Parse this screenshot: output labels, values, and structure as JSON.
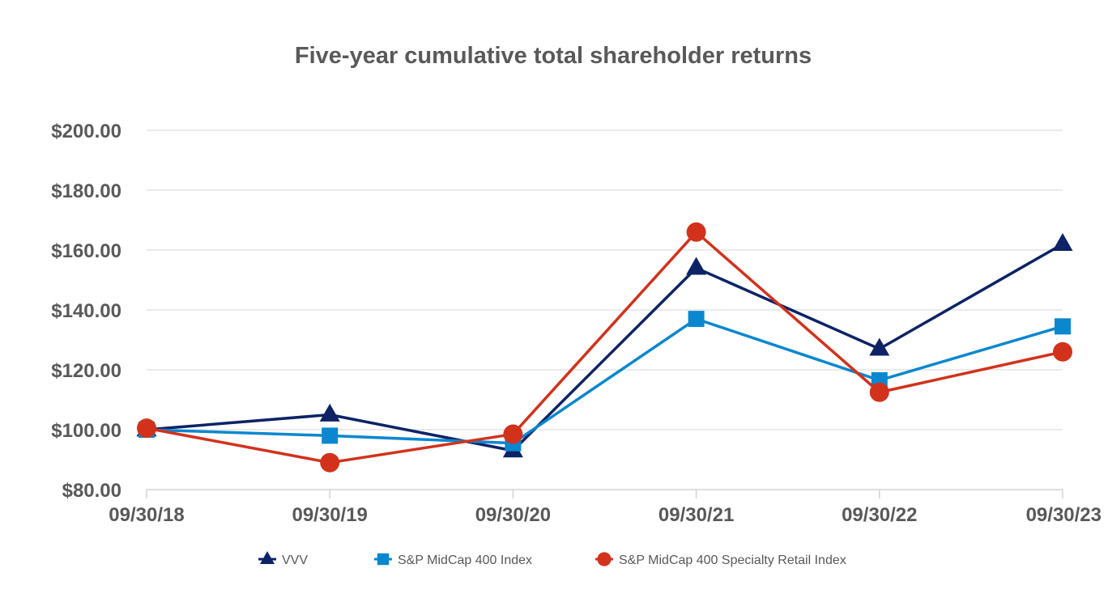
{
  "chart_data": {
    "type": "line",
    "title": "Five-year cumulative total shareholder returns",
    "xlabel": "",
    "ylabel": "",
    "categories": [
      "09/30/18",
      "09/30/19",
      "09/30/20",
      "09/30/21",
      "09/30/22",
      "09/30/23"
    ],
    "ylim": [
      80,
      200
    ],
    "yticks": [
      80,
      100,
      120,
      140,
      160,
      180,
      200
    ],
    "ytick_labels": [
      "$80.00",
      "$100.00",
      "$120.00",
      "$140.00",
      "$160.00",
      "$180.00",
      "$200.00"
    ],
    "grid": true,
    "legend_position": "bottom",
    "series": [
      {
        "name": "VVV",
        "values": [
          100,
          105,
          93,
          154,
          127,
          162
        ],
        "color": "#0d2366",
        "marker": "triangle"
      },
      {
        "name": "S&P MidCap 400 Index",
        "values": [
          100,
          98,
          95.5,
          137,
          116.5,
          134.5
        ],
        "color": "#0a87cf",
        "marker": "square"
      },
      {
        "name": "S&P MidCap 400 Specialty Retail Index",
        "values": [
          100.5,
          89,
          98.5,
          166,
          112.5,
          126
        ],
        "color": "#d2321c",
        "marker": "circle"
      }
    ]
  }
}
